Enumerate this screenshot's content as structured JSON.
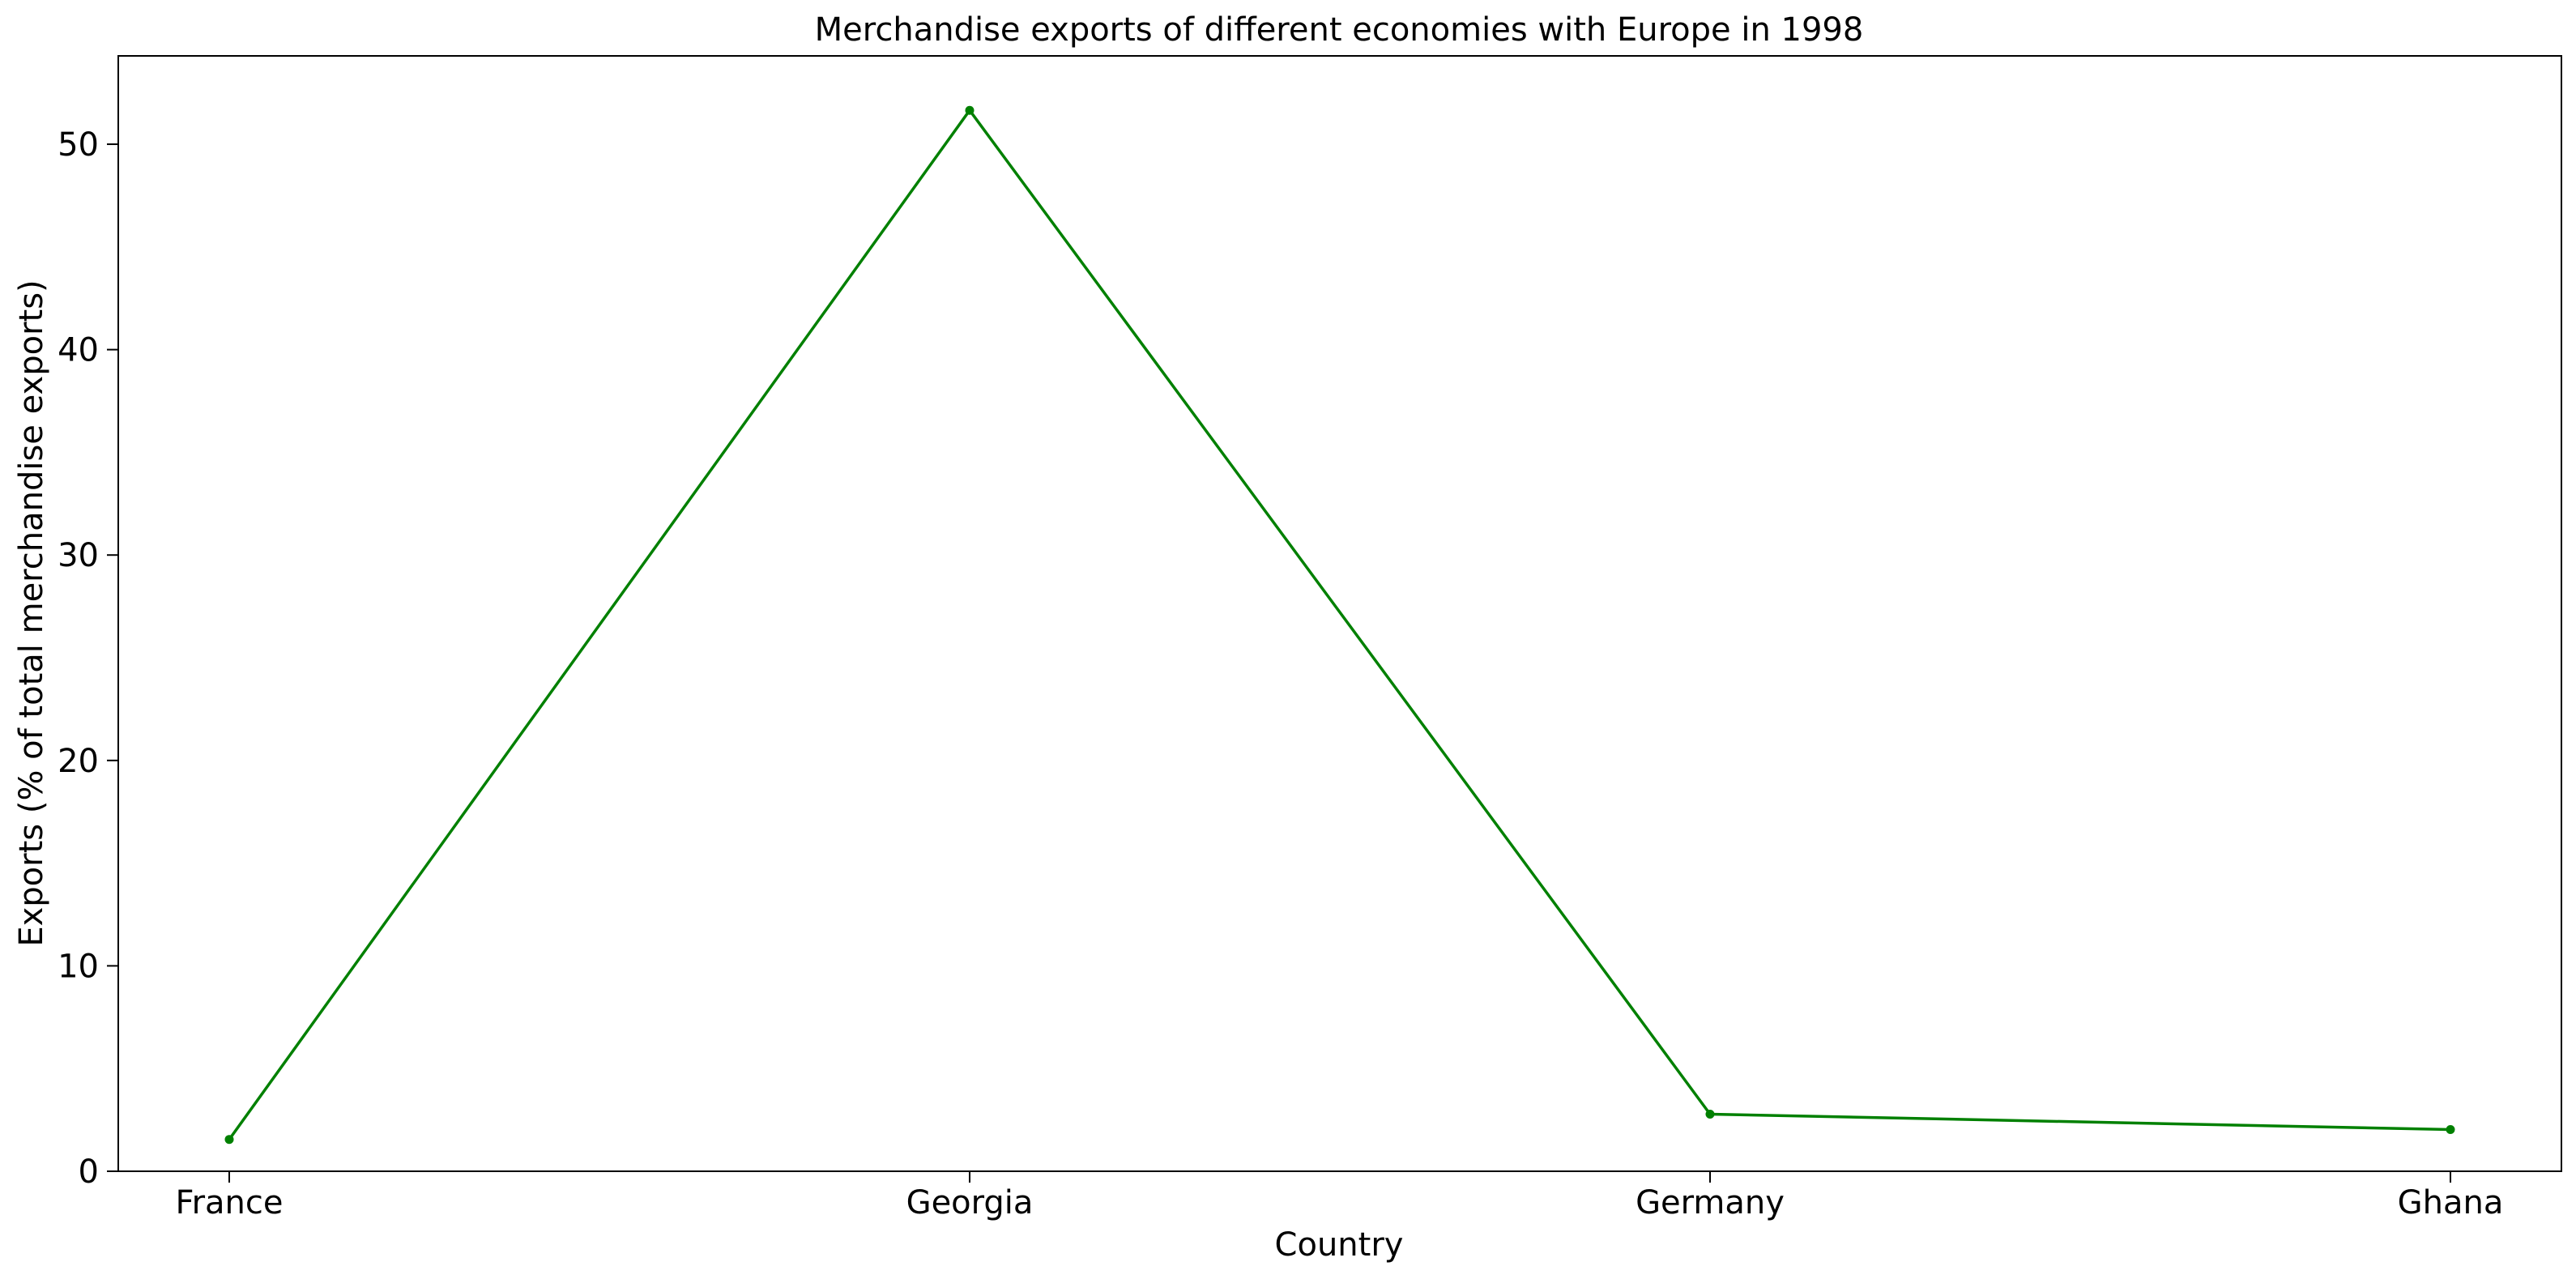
{
  "chart_data": {
    "type": "line",
    "title": "Merchandise exports of different economies with Europe in 1998",
    "xlabel": "Country",
    "ylabel": "Exports (% of total merchandise exports)",
    "categories": [
      "France",
      "Georgia",
      "Germany",
      "Ghana"
    ],
    "series": [
      {
        "values": [
          1.55,
          51.65,
          2.78,
          2.03
        ],
        "color": "#008000",
        "marker": "circle"
      }
    ],
    "ylim": [
      0,
      54.3
    ],
    "yticks": [
      0,
      10,
      20,
      30,
      40,
      50
    ],
    "grid": false,
    "legend": "none"
  }
}
